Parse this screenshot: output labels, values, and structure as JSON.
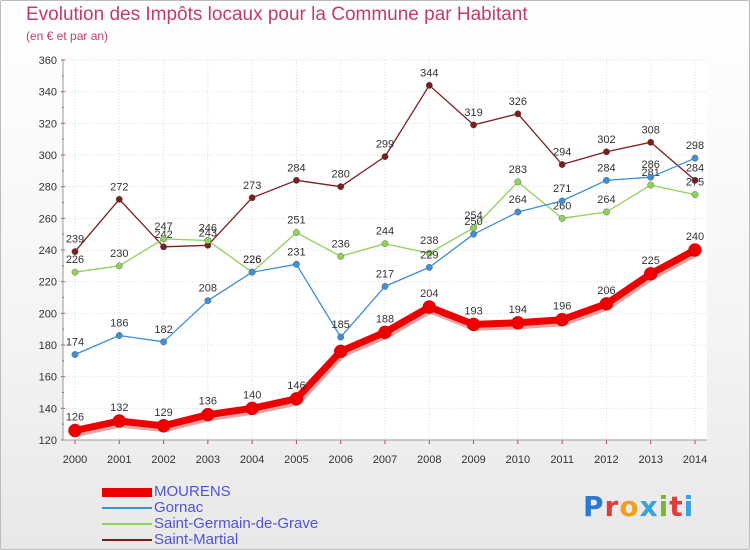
{
  "header": {
    "title": "Evolution des Impôts locaux pour la Commune par Habitant",
    "subtitle": "(en € et par an)"
  },
  "logo": {
    "text": "Proxiti",
    "colors": [
      "#2a7ad0",
      "#e23b3b",
      "#f0a020",
      "#3aa0e0",
      "#78b830",
      "#e23b3b",
      "#3aa0e0"
    ]
  },
  "chart_data": {
    "type": "line",
    "x": [
      "2000",
      "2001",
      "2002",
      "2003",
      "2004",
      "2005",
      "2006",
      "2007",
      "2008",
      "2009",
      "2010",
      "2011",
      "2012",
      "2013",
      "2014"
    ],
    "ylim": [
      120,
      360
    ],
    "yticks": [
      120,
      140,
      160,
      180,
      200,
      220,
      240,
      260,
      280,
      300,
      320,
      340,
      360
    ],
    "grid": true,
    "legend_placement": "bottom-left",
    "series": [
      {
        "name": "Saint-Martial",
        "color": "#7a1e1e",
        "values": [
          239,
          272,
          242,
          243,
          273,
          284,
          280,
          299,
          344,
          319,
          326,
          294,
          302,
          308,
          284
        ]
      },
      {
        "name": "Saint-Germain-de-Grave",
        "color": "#8fd15a",
        "values": [
          226,
          230,
          247,
          246,
          226,
          251,
          236,
          244,
          238,
          254,
          283,
          260,
          264,
          281,
          275
        ]
      },
      {
        "name": "Gornac",
        "color": "#3d8fd6",
        "values": [
          174,
          186,
          182,
          208,
          226,
          231,
          185,
          217,
          229,
          250,
          264,
          271,
          284,
          286,
          298
        ]
      },
      {
        "name": "MOURENS",
        "color": "#ee0000",
        "values": [
          126,
          132,
          129,
          136,
          140,
          146,
          176,
          188,
          204,
          193,
          194,
          196,
          206,
          225,
          240
        ],
        "labels": [
          "126",
          "132",
          "129",
          "136",
          "140",
          "146",
          "",
          "188",
          "204",
          "193",
          "194",
          "196",
          "206",
          "225",
          "240"
        ]
      }
    ],
    "legend": [
      "MOURENS",
      "Gornac",
      "Saint-Germain-de-Grave",
      "Saint-Martial"
    ]
  }
}
